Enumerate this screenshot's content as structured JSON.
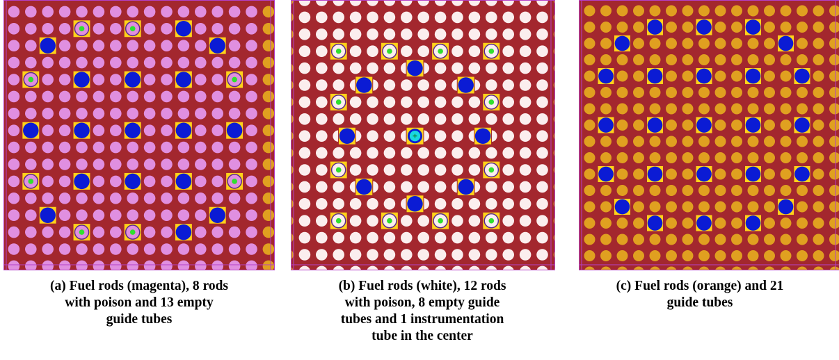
{
  "panels": [
    {
      "id": "a",
      "caption_lines": [
        "(a) Fuel rods (magenta), 8 rods",
        "with poison and 13 empty",
        "guide tubes"
      ],
      "colors": {
        "background": "#a3272e",
        "fuel": "#e08fe0",
        "edge_fuel": "#e0a020",
        "tube": "#0b1bd4",
        "tube_box": "#ffd21a",
        "poison": "#2fe02f",
        "border": "#b540c8"
      }
    },
    {
      "id": "b",
      "caption_lines": [
        "(b) Fuel rods (white), 12 rods",
        "with poison, 8 empty guide",
        "tubes and 1 instrumentation",
        "tube in the center"
      ],
      "colors": {
        "background": "#a3272e",
        "fuel": "#fbeeee",
        "edge_fuel": "#e0a020",
        "tube": "#0b1bd4",
        "tube_box": "#ffd21a",
        "poison": "#2fe02f",
        "instrument": "#19d8e0",
        "border": "#b540c8"
      }
    },
    {
      "id": "c",
      "caption_lines": [
        "(c) Fuel rods (orange) and 21",
        "guide tubes"
      ],
      "colors": {
        "background": "#a3272e",
        "fuel": "#e0a020",
        "tube": "#0b1bd4",
        "tube_box": "#ffd21a",
        "border": "#b540c8"
      }
    }
  ]
}
